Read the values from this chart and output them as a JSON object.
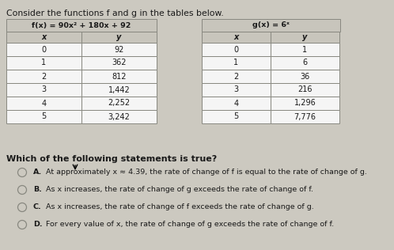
{
  "title": "Consider the functions f and g in the tables below.",
  "f_header": "f(x) = 90x² + 180x + 92",
  "g_header": "g(x) = 6ˣ",
  "f_x": [
    "0",
    "1",
    "2",
    "3",
    "4",
    "5"
  ],
  "f_y": [
    "92",
    "362",
    "812",
    "1,442",
    "2,252",
    "3,242"
  ],
  "g_x": [
    "0",
    "1",
    "2",
    "3",
    "4",
    "5"
  ],
  "g_y": [
    "1",
    "6",
    "36",
    "216",
    "1,296",
    "7,776"
  ],
  "question": "Which of the following statements is true?",
  "options": [
    {
      "label": "A.",
      "text": "At approximately x ≈ 4.39, the rate of change of f is equal to the rate of change of g."
    },
    {
      "label": "B.",
      "text": "As x increases, the rate of change of g exceeds the rate of change of f."
    },
    {
      "label": "C.",
      "text": "As x increases, the rate of change of f exceeds the rate of change of g."
    },
    {
      "label": "D.",
      "text": "For every value of x, the rate of change of g exceeds the rate of change of f."
    }
  ],
  "bg_color": "#ccc9c0",
  "table_white": "#f5f5f5",
  "table_header_bg": "#c8c5bc",
  "border_color": "#888880",
  "text_color": "#1a1a1a",
  "title_fontsize": 7.8,
  "header_fontsize": 6.8,
  "cell_fontsize": 7.0,
  "question_fontsize": 8.0,
  "option_fontsize": 6.8
}
